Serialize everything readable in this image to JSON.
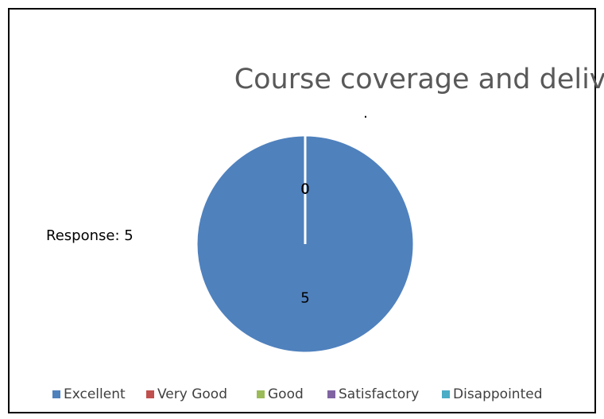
{
  "chart_data": {
    "type": "pie",
    "title": "Course coverage and delivery.",
    "subtitle": ".",
    "annotation": "Response: 5",
    "categories": [
      "Excellent",
      "Very Good",
      "Good",
      "Satisfactory",
      "Disappointed"
    ],
    "values": [
      5,
      0,
      0,
      0,
      0
    ],
    "colors": [
      "#4f81bd",
      "#c0504d",
      "#9bbb59",
      "#8064a2",
      "#4bacc6"
    ],
    "legend": "bottom"
  }
}
